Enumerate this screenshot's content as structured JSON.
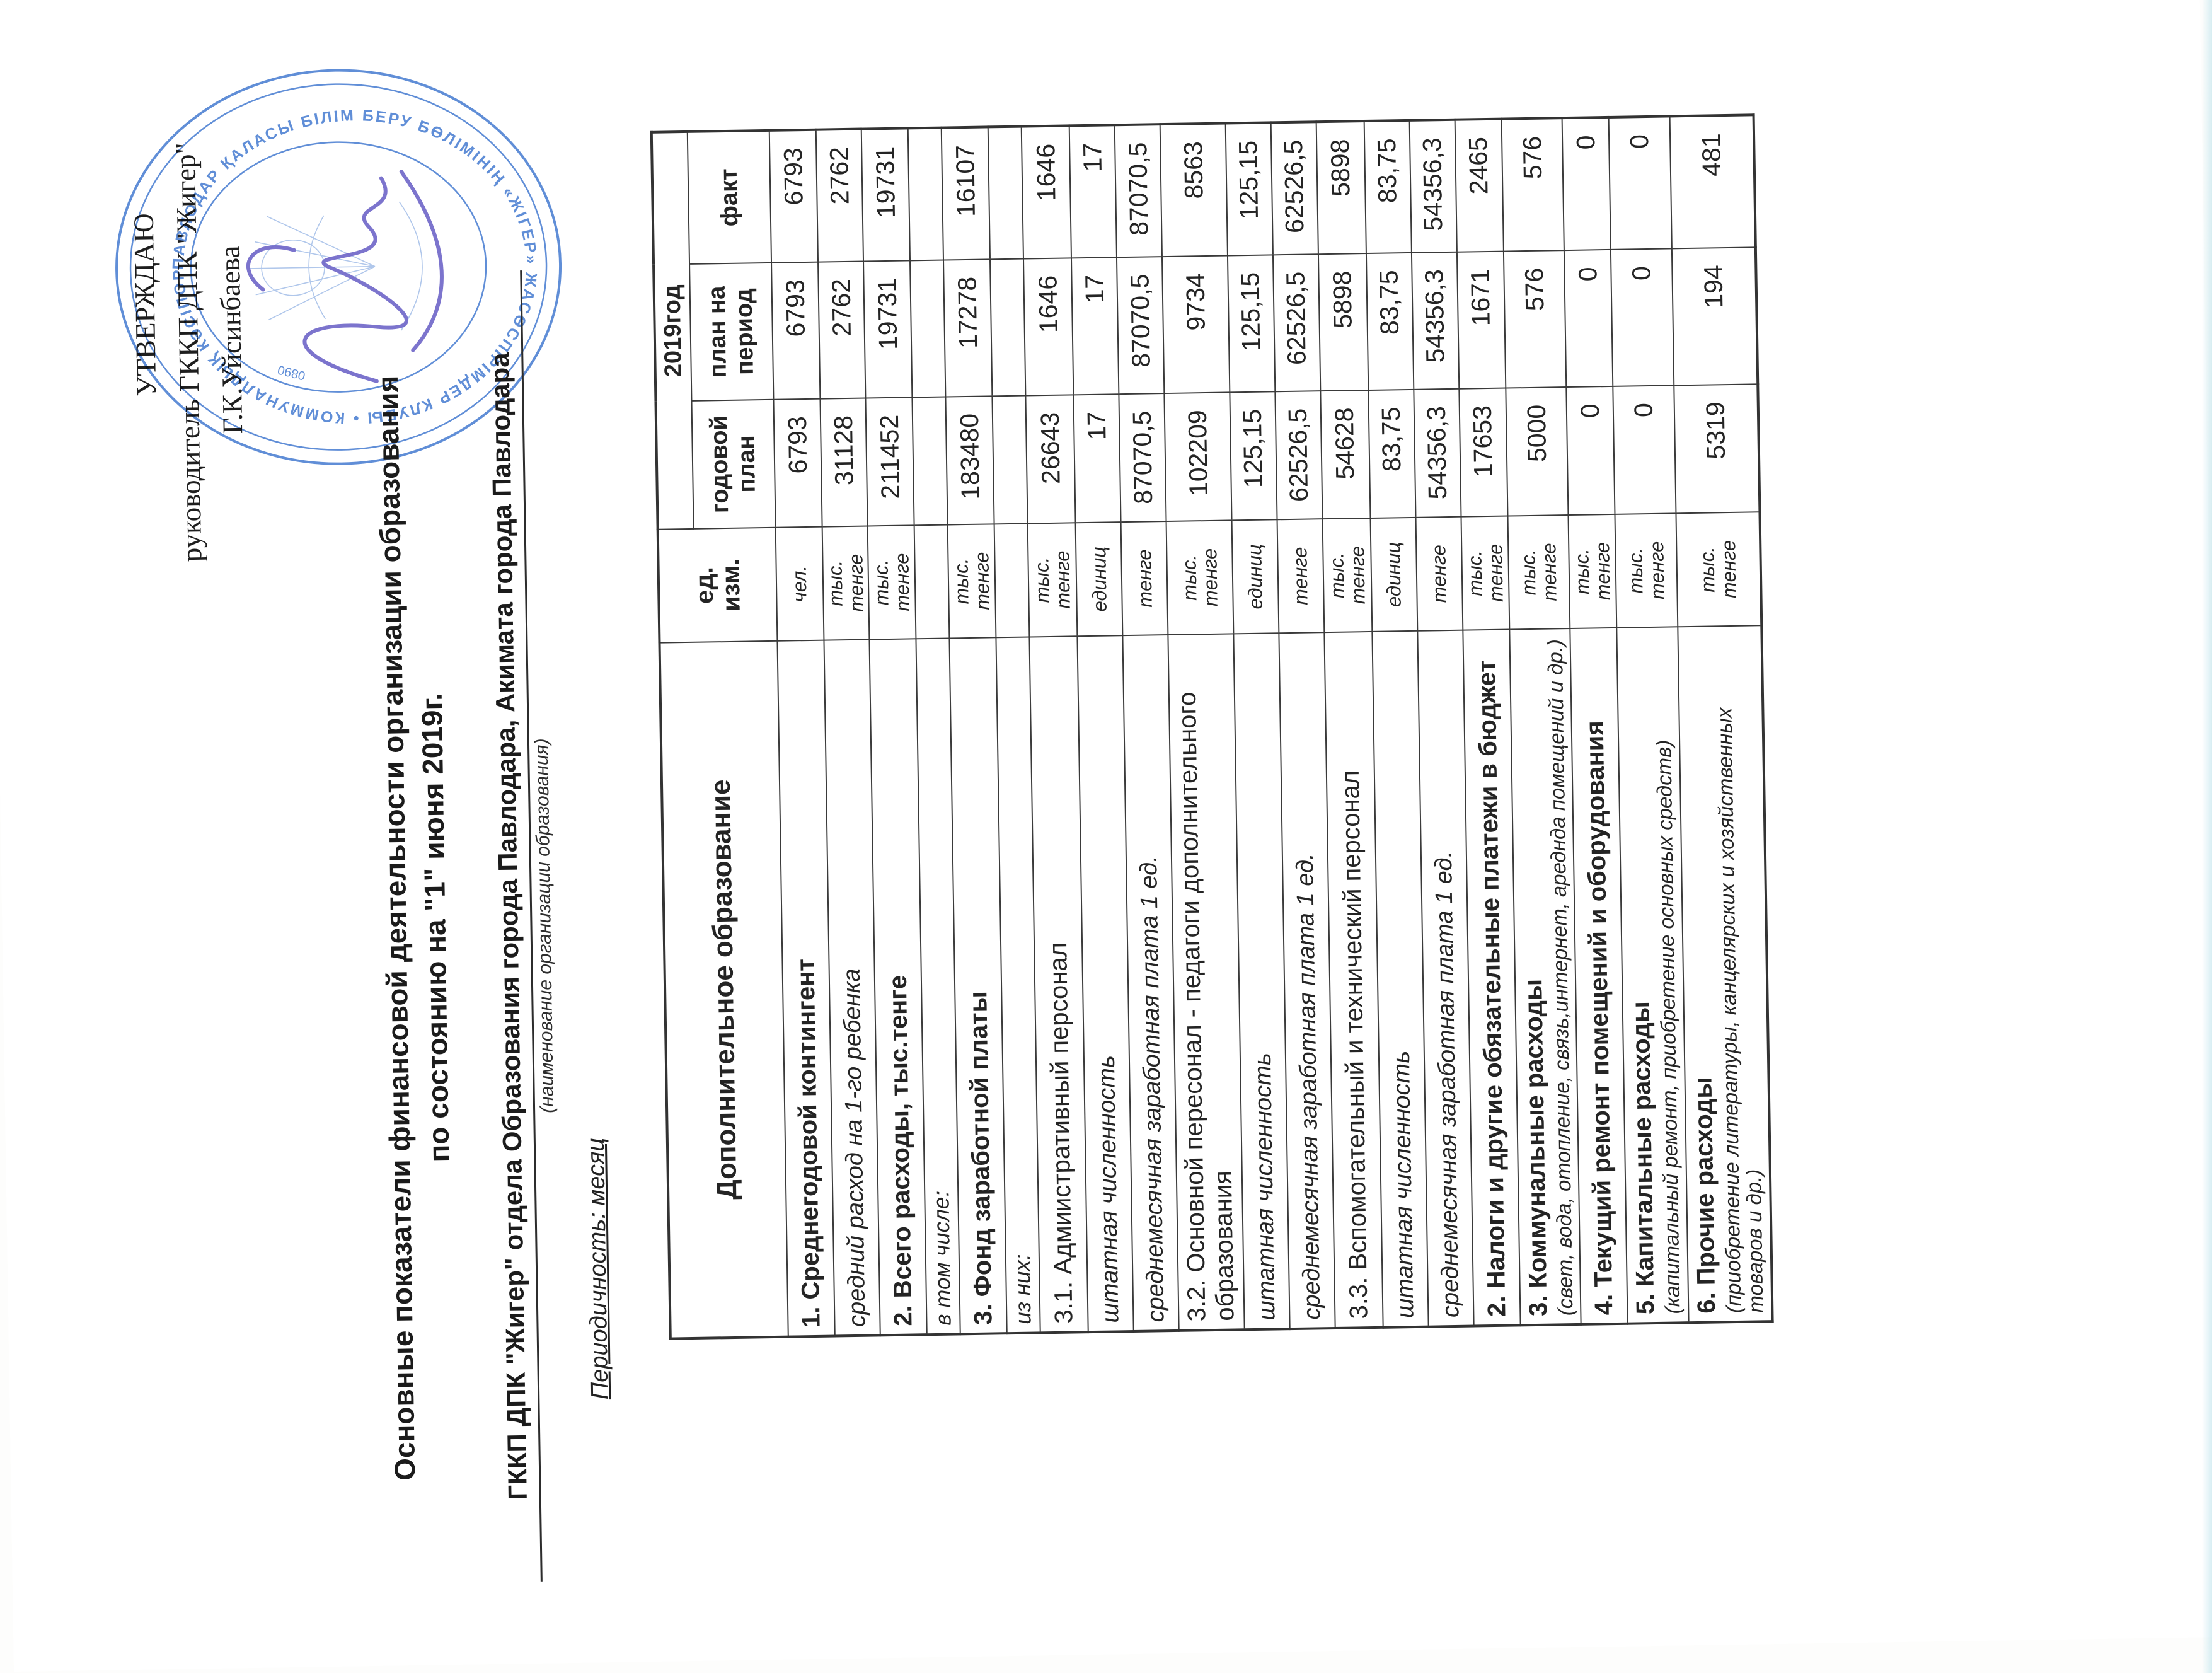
{
  "page": {
    "background": "#ffffff",
    "ink": "#262626"
  },
  "approval": {
    "line1": "УТВЕРЖДАЮ",
    "line2": "руководитель ГККП ДПК \"Жигер\"",
    "line3": "Г.К.Уйсинбаева"
  },
  "stamp": {
    "ring_text": "ПАВЛОДАР ҚАЛАСЫ БІЛІМ БЕРУ БӨЛІМІНІҢ «ЖІГЕР» ЖАСӨСПІРІМДЕР КЛУБЫ • КОММУНАЛДЫҚ КӘСІПОРЫН • ",
    "serial": "0890",
    "color": "#4a7ed2",
    "signature_color": "#5a50c0"
  },
  "title": {
    "line1": "Основные показатели финансовой деятельности организации образования",
    "line2": "по состоянию на \"1\" июня 2019г.",
    "org_line": "ГККП ДПК \"Жигер\" отдела Образования города Павлодара, Акимата города Павлодара",
    "org_caption": "(наименование организации образования)",
    "periodicity": "Периодичность: месяц"
  },
  "table": {
    "header": {
      "col_indicator": "Дополнительное образование",
      "col_unit": "ед.\nизм.",
      "col_year": "2019год",
      "col_annual": "годовой план",
      "col_period": "план на период",
      "col_fact": "факт"
    },
    "rows": [
      {
        "style": "bold",
        "label": "1. Среднегодовой контингент",
        "sub": "",
        "unit": "чел.",
        "annual": "6793",
        "period": "6793",
        "fact": "6793"
      },
      {
        "style": "italic",
        "label": "средний расход на 1-го ребенка",
        "sub": "",
        "unit": "тыс.\nтенге",
        "annual": "31128",
        "period": "2762",
        "fact": "2762"
      },
      {
        "style": "bold",
        "label": "2. Всего расходы, тыс.тенге",
        "sub": "",
        "unit": "тыс.\nтенге",
        "annual": "211452",
        "period": "19731",
        "fact": "19731"
      },
      {
        "style": "note",
        "label": "в том числе:",
        "sub": "",
        "unit": "",
        "annual": "",
        "period": "",
        "fact": ""
      },
      {
        "style": "bold",
        "label": "3. Фонд заработной платы",
        "sub": "",
        "unit": "тыс.\nтенге",
        "annual": "183480",
        "period": "17278",
        "fact": "16107"
      },
      {
        "style": "note",
        "label": "из них:",
        "sub": "",
        "unit": "",
        "annual": "",
        "period": "",
        "fact": ""
      },
      {
        "style": "normal",
        "label": "3.1. Адмиистративный персонал",
        "sub": "",
        "unit": "тыс.\nтенге",
        "annual": "26643",
        "period": "1646",
        "fact": "1646"
      },
      {
        "style": "italic",
        "label": "штатная численность",
        "sub": "",
        "unit": "единиц",
        "annual": "17",
        "period": "17",
        "fact": "17"
      },
      {
        "style": "italic",
        "label": "среднемесячная заработная плата 1 ед.",
        "sub": "",
        "unit": "тенге",
        "annual": "87070,5",
        "period": "87070,5",
        "fact": "87070,5"
      },
      {
        "style": "normal",
        "label": "3.2. Основной пересонал - педагоги дополнительного образования",
        "sub": "",
        "unit": "тыс.\nтенге",
        "annual": "102209",
        "period": "9734",
        "fact": "8563"
      },
      {
        "style": "italic",
        "label": "штатная численность",
        "sub": "",
        "unit": "единиц",
        "annual": "125,15",
        "period": "125,15",
        "fact": "125,15"
      },
      {
        "style": "italic",
        "label": "среднемесячная заработная плата 1 ед.",
        "sub": "",
        "unit": "тенге",
        "annual": "62526,5",
        "period": "62526,5",
        "fact": "62526,5"
      },
      {
        "style": "normal",
        "label": "3.3. Вспомогательный и технический персонал",
        "sub": "",
        "unit": "тыс.\nтенге",
        "annual": "54628",
        "period": "5898",
        "fact": "5898"
      },
      {
        "style": "italic",
        "label": "штатная численность",
        "sub": "",
        "unit": "единиц",
        "annual": "83,75",
        "period": "83,75",
        "fact": "83,75"
      },
      {
        "style": "italic",
        "label": "среднемесячная заработная плата 1 ед.",
        "sub": "",
        "unit": "тенге",
        "annual": "54356,3",
        "period": "54356,3",
        "fact": "54356,3"
      },
      {
        "style": "bold",
        "label": "2. Налоги и другие обязательные платежи в бюджет",
        "sub": "",
        "unit": "тыс.\nтенге",
        "annual": "17653",
        "period": "1671",
        "fact": "2465"
      },
      {
        "style": "bold",
        "label": "3. Коммунальные расходы",
        "sub": "(свет, вода, отопление, связь,интернет, ареднда помещений и др.)",
        "unit": "тыс.\nтенге",
        "annual": "5000",
        "period": "576",
        "fact": "576"
      },
      {
        "style": "bold",
        "label": "4. Текущий ремонт помещений и оборудования",
        "sub": "",
        "unit": "тыс.\nтенге",
        "annual": "0",
        "period": "0",
        "fact": "0"
      },
      {
        "style": "bold",
        "label": "5. Капитальные расходы",
        "sub": "(капитальный ремонт, приобретение основных средств)",
        "unit": "тыс.\nтенге",
        "annual": "0",
        "period": "0",
        "fact": "0"
      },
      {
        "style": "bold",
        "label": "6. Прочие расходы",
        "sub": "(приобретение литературы, канцелярских и хозяйственных товаров и др.)",
        "unit": "тыс.\nтенге",
        "annual": "5319",
        "period": "194",
        "fact": "481"
      }
    ]
  }
}
